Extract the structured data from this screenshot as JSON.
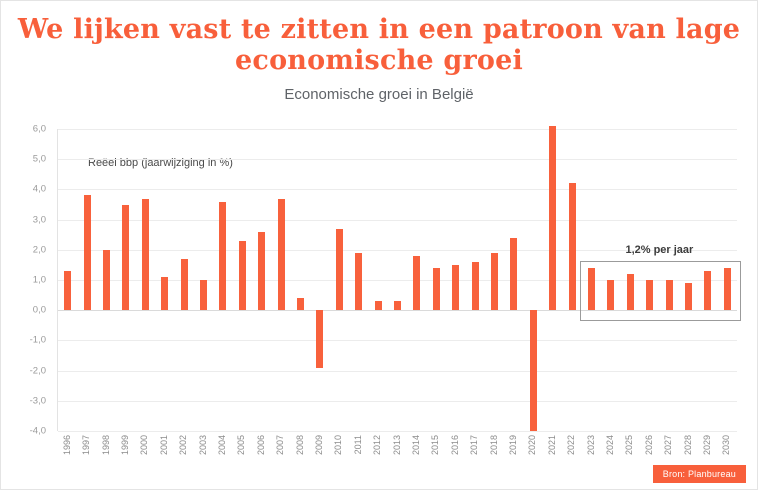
{
  "header": {
    "title": "We lijken vast te zitten in een patroon van lage\neconomische groei"
  },
  "colors": {
    "accent": "#f85f3b"
  },
  "chart_data": {
    "type": "bar",
    "title": "Economische groei in België",
    "annotation": "Reëel bbp (jaarwijziging in %)",
    "source": "Bron: Planbureau",
    "categories": [
      "1996",
      "1997",
      "1998",
      "1999",
      "2000",
      "2001",
      "2002",
      "2003",
      "2004",
      "2005",
      "2006",
      "2007",
      "2008",
      "2009",
      "2010",
      "2011",
      "2012",
      "2013",
      "2014",
      "2015",
      "2016",
      "2017",
      "2018",
      "2019",
      "2020",
      "2021",
      "2022",
      "2023",
      "2024",
      "2025",
      "2026",
      "2027",
      "2028",
      "2029",
      "2030"
    ],
    "values": [
      1.3,
      3.8,
      2.0,
      3.5,
      3.7,
      1.1,
      1.7,
      1.0,
      3.6,
      2.3,
      2.6,
      3.7,
      0.4,
      -1.9,
      2.7,
      1.9,
      0.3,
      0.3,
      1.8,
      1.4,
      1.5,
      1.6,
      1.9,
      2.4,
      -4.0,
      6.1,
      4.2,
      1.4,
      1.0,
      1.2,
      1.0,
      1.0,
      0.9,
      1.3,
      1.4
    ],
    "ylim": [
      -4,
      6
    ],
    "yticks": [
      6,
      5,
      4,
      3,
      2,
      1,
      0,
      -1,
      -2,
      -3,
      -4
    ],
    "ytick_labels": [
      "6,0",
      "5,0",
      "4,0",
      "3,0",
      "2,0",
      "1,0",
      "0,0",
      "-1,0",
      "-2,0",
      "-3,0",
      "-4,0"
    ],
    "bar_color": "#f8613c",
    "grid": true,
    "legend": false,
    "highlight": {
      "start": "2023",
      "end": "2030",
      "label": "1,2% per jaar"
    }
  }
}
